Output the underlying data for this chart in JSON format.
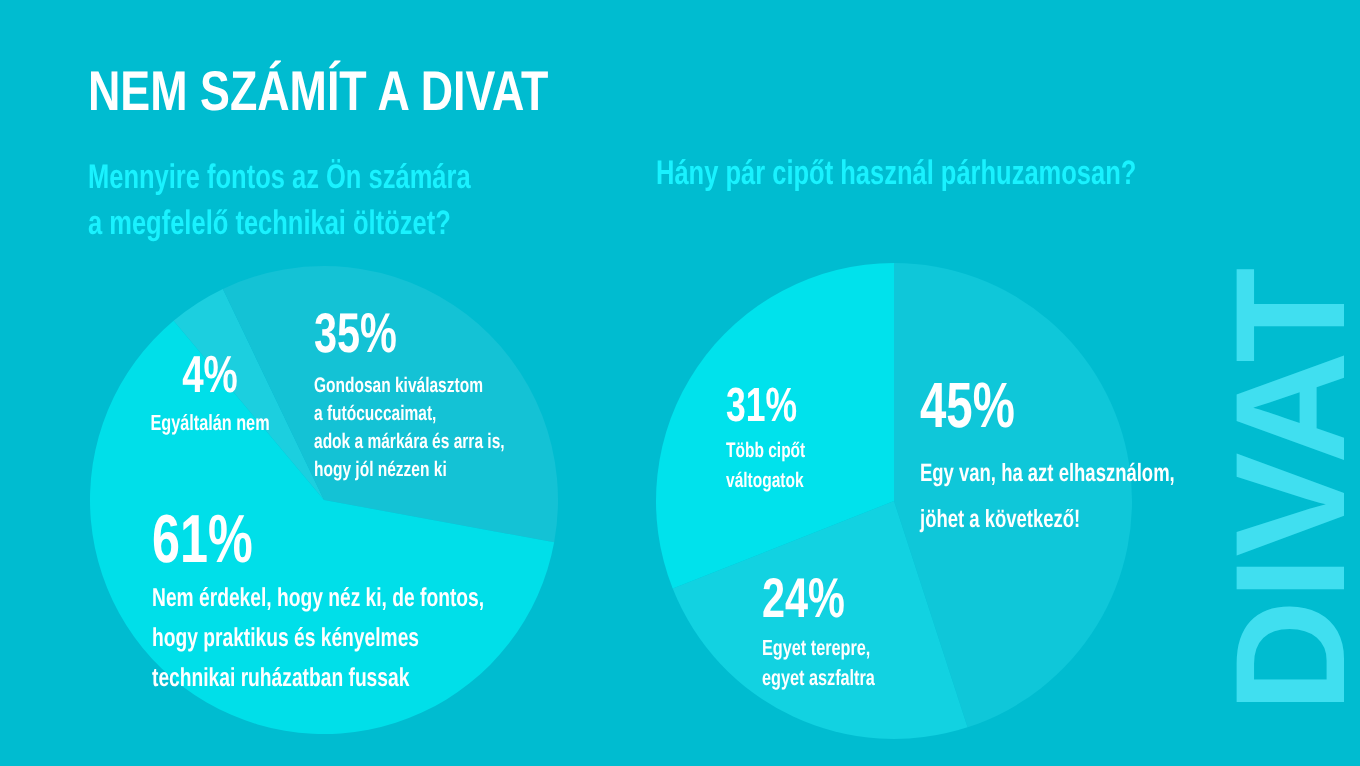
{
  "chart_data": [
    {
      "type": "pie",
      "title": "NEM SZÁMÍT A DIVAT",
      "subtitle": "Mennyire fontos az Ön számára\na megfelelő technikai öltözet?",
      "categories": [
        "Egyáltalán nem",
        "Gondosan kiválasztom\na futócuccaimat,\nadok a márkára és arra is,\nhogy jól nézzen ki",
        "Nem érdekel, hogy néz ki, de fontos,\nhogy praktikus és kényelmes\ntechnikai ruházatban fussak"
      ],
      "values": [
        4,
        35,
        61
      ],
      "value_labels": [
        "4%",
        "35%",
        "61%"
      ],
      "colors": [
        "#1ccfdf",
        "#14c2d5",
        "#00dfe9"
      ]
    },
    {
      "type": "pie",
      "title": "Hány pár cipőt használ párhuzamosan?",
      "categories": [
        "Egy van, ha azt elhasználom,\njöhet a következő!",
        "Egyet terepre,\negyet aszfaltra",
        "Több cipőt\nváltogatok"
      ],
      "values": [
        45,
        24,
        31
      ],
      "value_labels": [
        "45%",
        "24%",
        "31%"
      ],
      "colors": [
        "#0fc7d9",
        "#12d2e1",
        "#00e2ec"
      ],
      "annotations": [
        "DIVAT"
      ]
    }
  ]
}
